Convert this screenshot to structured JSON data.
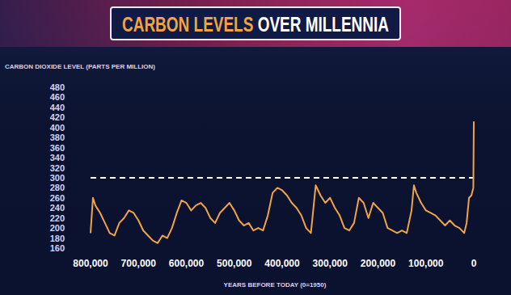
{
  "chart_data": {
    "type": "line",
    "title": "CARBON LEVELS OVER MILLENNIA",
    "y_label": "CARBON DIOXIDE LEVEL (PARTS PER MILLION)",
    "x_label": "YEARS BEFORE TODAY (0=1950)",
    "color": "#f2a444",
    "threshold": 300,
    "grid": false,
    "x": [
      800000,
      795000,
      790000,
      780000,
      770000,
      760000,
      750000,
      740000,
      730000,
      720000,
      710000,
      700000,
      690000,
      680000,
      670000,
      660000,
      650000,
      640000,
      630000,
      620000,
      610000,
      600000,
      590000,
      580000,
      570000,
      560000,
      550000,
      540000,
      530000,
      520000,
      510000,
      500000,
      490000,
      480000,
      470000,
      460000,
      450000,
      440000,
      430000,
      420000,
      410000,
      400000,
      390000,
      380000,
      370000,
      360000,
      350000,
      340000,
      330000,
      320000,
      310000,
      300000,
      290000,
      280000,
      270000,
      260000,
      250000,
      240000,
      230000,
      220000,
      210000,
      200000,
      190000,
      180000,
      170000,
      160000,
      150000,
      140000,
      130000,
      125000,
      120000,
      110000,
      100000,
      90000,
      80000,
      70000,
      60000,
      50000,
      40000,
      30000,
      20000,
      15000,
      10000,
      5000,
      1000,
      0
    ],
    "values": [
      190,
      260,
      245,
      230,
      210,
      190,
      185,
      210,
      220,
      235,
      230,
      215,
      195,
      185,
      175,
      170,
      185,
      180,
      200,
      230,
      255,
      250,
      235,
      245,
      250,
      240,
      220,
      210,
      230,
      240,
      250,
      235,
      215,
      205,
      210,
      195,
      200,
      195,
      225,
      270,
      280,
      275,
      265,
      250,
      240,
      225,
      200,
      190,
      285,
      265,
      250,
      260,
      240,
      225,
      200,
      195,
      210,
      260,
      250,
      220,
      250,
      240,
      230,
      200,
      195,
      190,
      195,
      190,
      235,
      285,
      270,
      250,
      235,
      230,
      225,
      215,
      205,
      215,
      205,
      200,
      190,
      210,
      260,
      265,
      280,
      412
    ],
    "xlim": [
      800000,
      0
    ],
    "xticks": [
      {
        "value": 800000,
        "label": "800,000"
      },
      {
        "value": 700000,
        "label": "700,000"
      },
      {
        "value": 600000,
        "label": "600,000"
      },
      {
        "value": 500000,
        "label": "500,000"
      },
      {
        "value": 400000,
        "label": "400,000"
      },
      {
        "value": 300000,
        "label": "300,000"
      },
      {
        "value": 200000,
        "label": "200,000"
      },
      {
        "value": 100000,
        "label": "100,000"
      },
      0
    ],
    "ylim": [
      160,
      480
    ],
    "yticks": [
      160,
      180,
      200,
      220,
      240,
      260,
      280,
      300,
      320,
      340,
      360,
      380,
      400,
      420,
      440,
      460,
      480
    ]
  }
}
